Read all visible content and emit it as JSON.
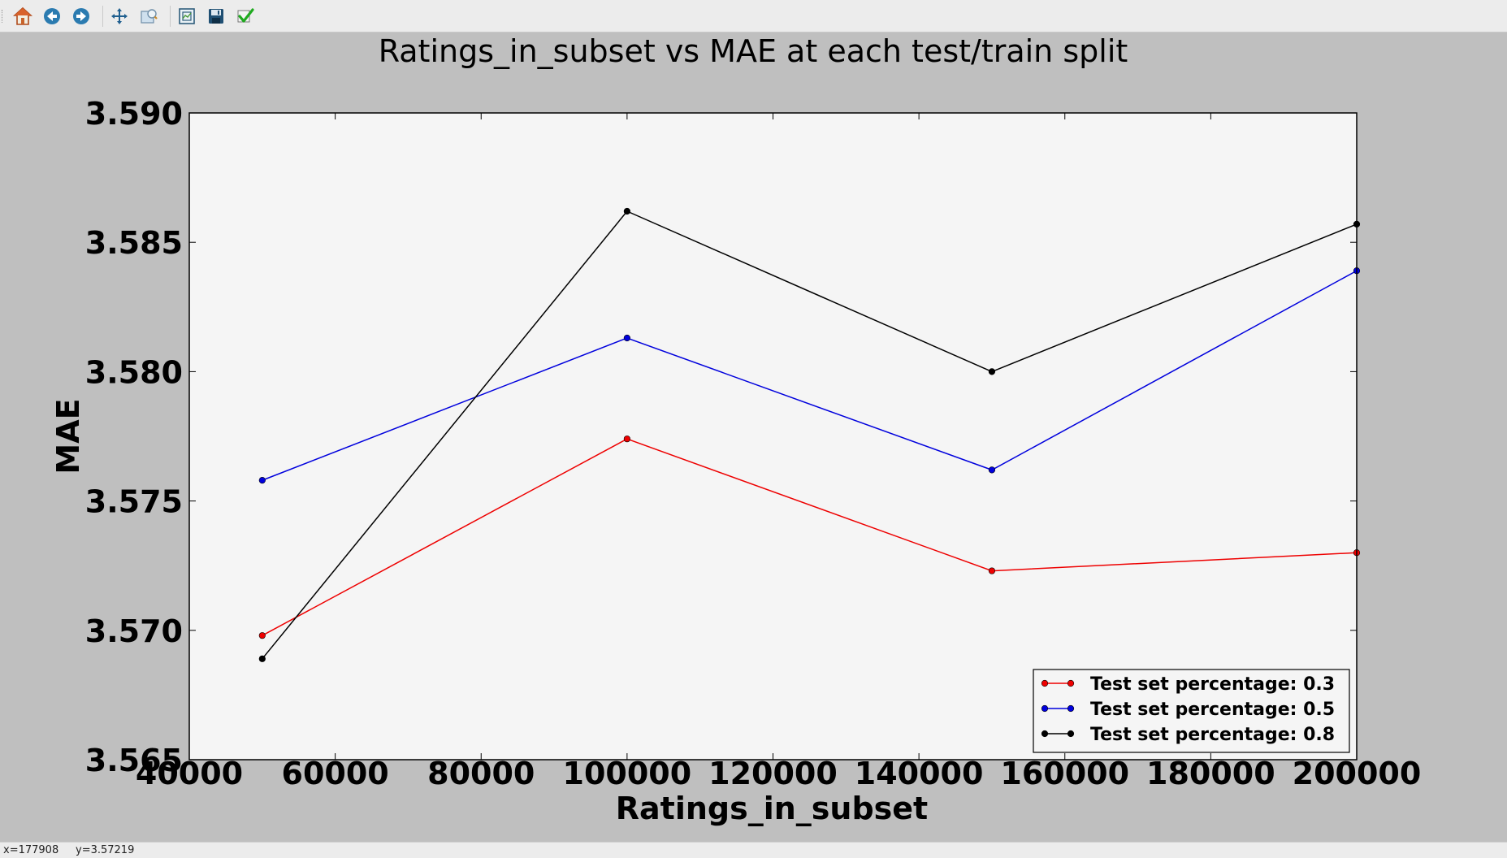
{
  "toolbar": {
    "buttons": [
      {
        "name": "home-icon",
        "tooltip": "Home"
      },
      {
        "name": "back-icon",
        "tooltip": "Back"
      },
      {
        "name": "forward-icon",
        "tooltip": "Forward"
      },
      {
        "name": "pan-icon",
        "tooltip": "Pan"
      },
      {
        "name": "zoom-icon",
        "tooltip": "Zoom"
      },
      {
        "name": "subplots-icon",
        "tooltip": "Configure subplots"
      },
      {
        "name": "save-icon",
        "tooltip": "Save"
      },
      {
        "name": "edit-icon",
        "tooltip": "Edit"
      }
    ]
  },
  "status": {
    "x_readout": "x=177908",
    "y_readout": "y=3.57219"
  },
  "colors": {
    "figure_bg": "#bfbfbf",
    "axes_bg": "#f5f5f5",
    "red": "#ee0000",
    "blue": "#0000dd",
    "black": "#000000"
  },
  "chart_data": {
    "type": "line",
    "title": "Ratings_in_subset vs MAE at each test/train split",
    "xlabel": "Ratings_in_subset",
    "ylabel": "MAE",
    "xlim": [
      40000,
      200000
    ],
    "ylim": [
      3.565,
      3.59
    ],
    "xticks": [
      "40000",
      "60000",
      "80000",
      "100000",
      "120000",
      "140000",
      "160000",
      "180000",
      "200000"
    ],
    "yticks": [
      "3.565",
      "3.570",
      "3.575",
      "3.580",
      "3.585",
      "3.590"
    ],
    "grid": false,
    "legend_position": "lower-right",
    "x": [
      50000,
      100000,
      150000,
      200000
    ],
    "series": [
      {
        "name": "Test set percentage: 0.3",
        "color": "#ee0000",
        "values": [
          3.5698,
          3.5774,
          3.5723,
          3.573
        ]
      },
      {
        "name": "Test set percentage: 0.5",
        "color": "#0000dd",
        "values": [
          3.5758,
          3.5813,
          3.5762,
          3.5839
        ]
      },
      {
        "name": "Test set percentage: 0.8",
        "color": "#000000",
        "values": [
          3.5689,
          3.5862,
          3.58,
          3.5857
        ]
      }
    ]
  }
}
